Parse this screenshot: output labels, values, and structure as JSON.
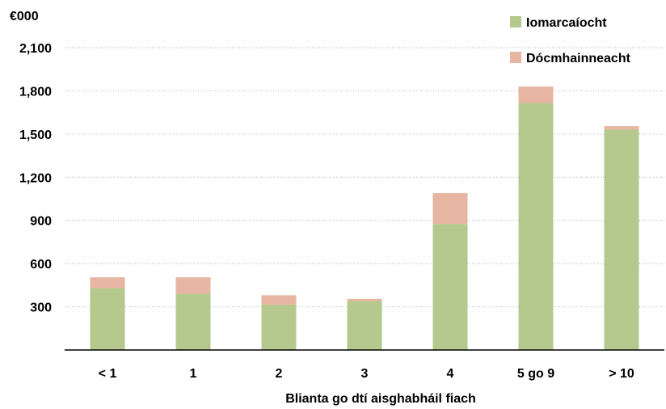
{
  "chart_data": {
    "type": "bar",
    "stacked": true,
    "unit_label": "€000",
    "xlabel": "Blianta go dtí aisghabháil fiach",
    "categories": [
      "< 1",
      "1",
      "2",
      "3",
      "4",
      "5 go 9",
      "> 10"
    ],
    "series": [
      {
        "name": "Iomarcaíocht",
        "color": "#b5c98f",
        "values": [
          430,
          390,
          315,
          340,
          875,
          1715,
          1530
        ]
      },
      {
        "name": "Dócmhainneacht",
        "color": "#e6b6a2",
        "values": [
          75,
          115,
          65,
          15,
          215,
          115,
          25
        ]
      }
    ],
    "yticks": [
      "300",
      "600",
      "900",
      "1,200",
      "1,500",
      "1,800",
      "2,100"
    ],
    "ytick_values": [
      300,
      600,
      900,
      1200,
      1500,
      1800,
      2100
    ],
    "ylim": [
      0,
      2100
    ],
    "grid": true,
    "legend": "top-right"
  }
}
